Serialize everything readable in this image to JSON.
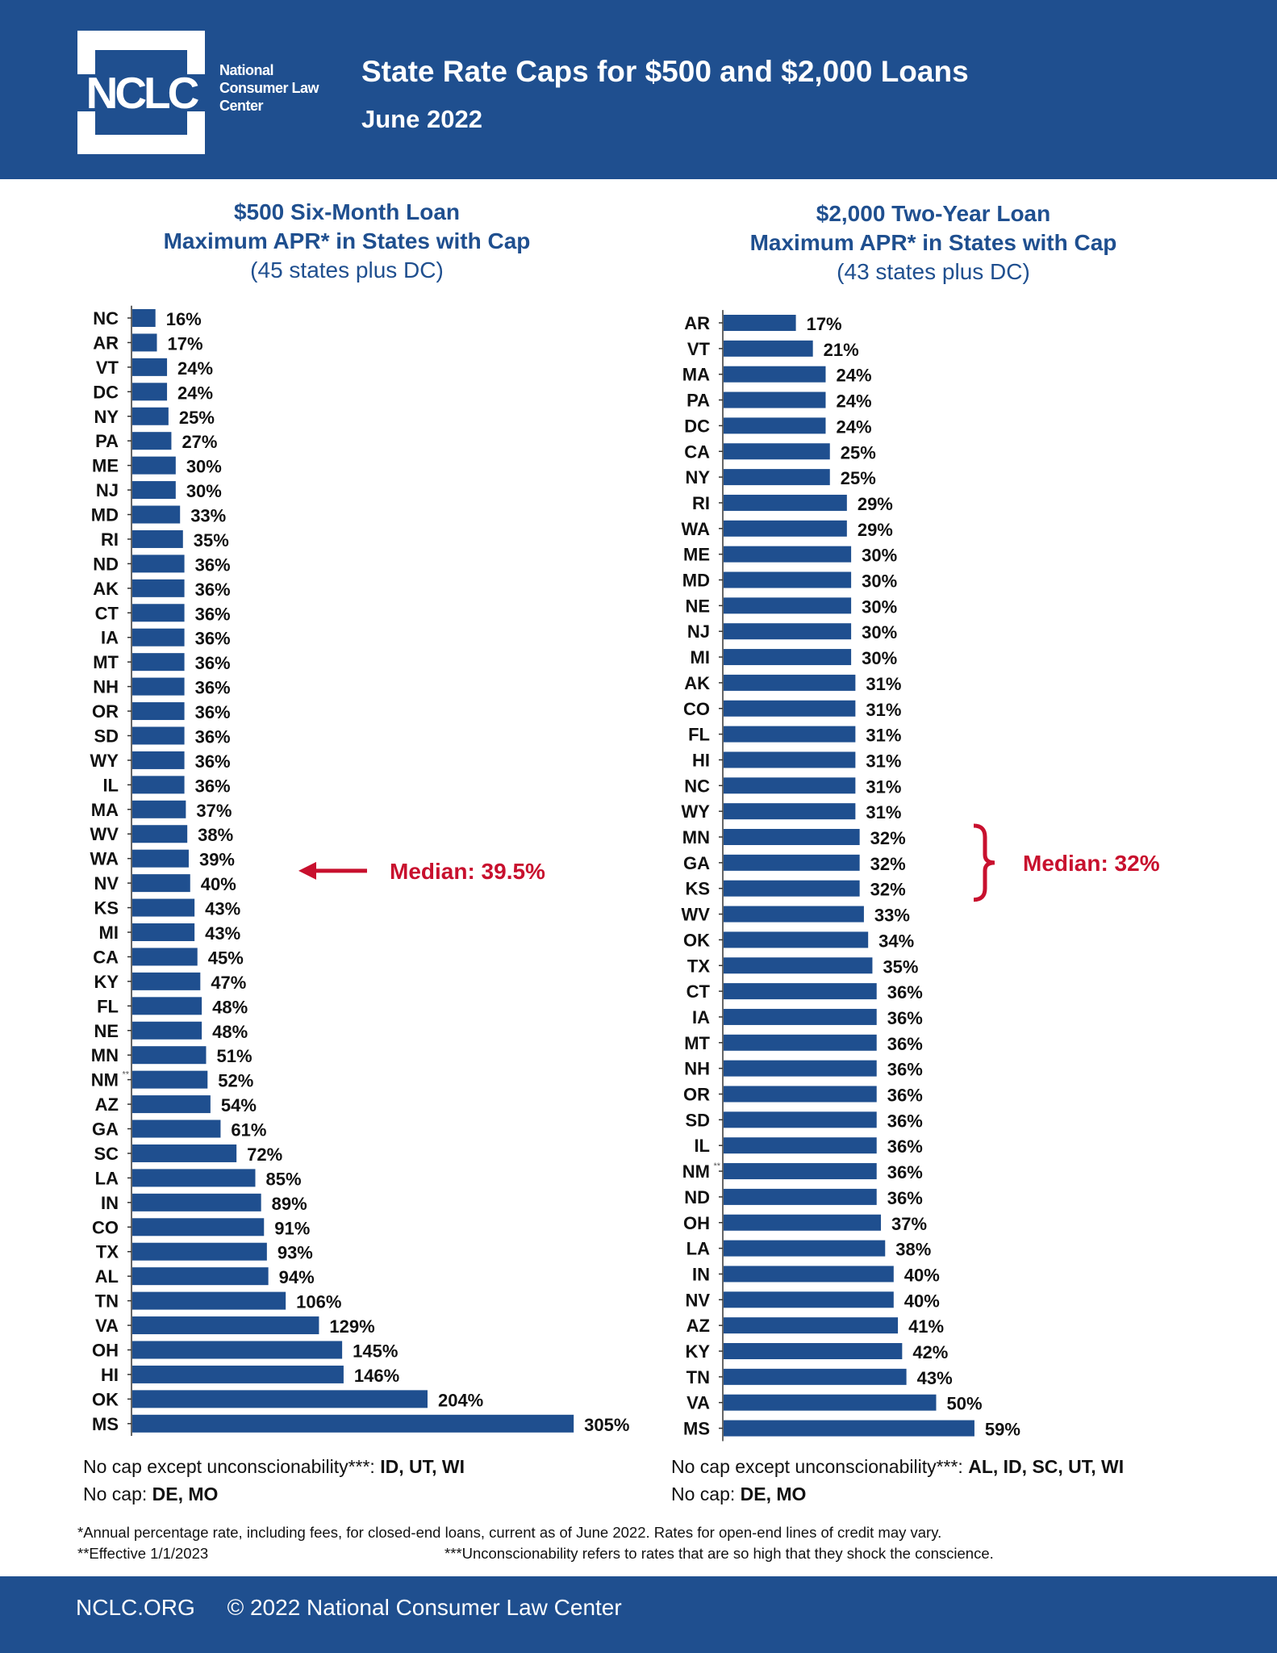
{
  "header": {
    "logo_text": "NCLC",
    "logo_name": [
      "National",
      "Consumer Law",
      "Center"
    ],
    "title": "State Rate Caps for $500 and $2,000 Loans",
    "subtitle": "June 2022"
  },
  "colors": {
    "bar": "#1f4f8f",
    "header": "#1f4f8f",
    "median": "#c8102e",
    "text": "#111111"
  },
  "chart_data": [
    {
      "type": "bar",
      "orientation": "horizontal",
      "title": [
        "$500 Six-Month Loan",
        "Maximum APR* in States with Cap",
        "(45 states plus DC)"
      ],
      "categories": [
        "NC",
        "AR",
        "VT",
        "DC",
        "NY",
        "PA",
        "ME",
        "NJ",
        "MD",
        "RI",
        "ND",
        "AK",
        "CT",
        "IA",
        "MT",
        "NH",
        "OR",
        "SD",
        "WY",
        "IL",
        "MA",
        "WV",
        "WA",
        "NV",
        "KS",
        "MI",
        "CA",
        "KY",
        "FL",
        "NE",
        "MN",
        "NM**",
        "AZ",
        "GA",
        "SC",
        "LA",
        "IN",
        "CO",
        "TX",
        "AL",
        "TN",
        "VA",
        "OH",
        "HI",
        "OK",
        "MS"
      ],
      "values": [
        16,
        17,
        24,
        24,
        25,
        27,
        30,
        30,
        33,
        35,
        36,
        36,
        36,
        36,
        36,
        36,
        36,
        36,
        36,
        36,
        37,
        38,
        39,
        40,
        43,
        43,
        45,
        47,
        48,
        48,
        51,
        52,
        54,
        61,
        72,
        85,
        89,
        91,
        93,
        94,
        106,
        129,
        145,
        146,
        204,
        305
      ],
      "value_suffix": "%",
      "annotation": {
        "text": "Median: 39.5%",
        "marker": "arrow",
        "between": [
          "WA",
          "NV"
        ]
      },
      "notes": {
        "uncon_label": "No cap except unconscionability***:",
        "uncon_states": "ID, UT, WI",
        "nocap_label": "No cap:",
        "nocap_states": "DE, MO"
      }
    },
    {
      "type": "bar",
      "orientation": "horizontal",
      "title": [
        "$2,000 Two-Year Loan",
        "Maximum APR* in States with Cap",
        "(43 states plus DC)"
      ],
      "categories": [
        "AR",
        "VT",
        "MA",
        "PA",
        "DC",
        "CA",
        "NY",
        "RI",
        "WA",
        "ME",
        "MD",
        "NE",
        "NJ",
        "MI",
        "AK",
        "CO",
        "FL",
        "HI",
        "NC",
        "WY",
        "MN",
        "GA",
        "KS",
        "WV",
        "OK",
        "TX",
        "CT",
        "IA",
        "MT",
        "NH",
        "OR",
        "SD",
        "IL",
        "NM**",
        "ND",
        "OH",
        "LA",
        "IN",
        "NV",
        "AZ",
        "KY",
        "TN",
        "VA",
        "MS"
      ],
      "values": [
        17,
        21,
        24,
        24,
        24,
        25,
        25,
        29,
        29,
        30,
        30,
        30,
        30,
        30,
        31,
        31,
        31,
        31,
        31,
        31,
        32,
        32,
        32,
        33,
        34,
        35,
        36,
        36,
        36,
        36,
        36,
        36,
        36,
        36,
        36,
        37,
        38,
        40,
        40,
        41,
        42,
        43,
        50,
        59
      ],
      "value_suffix": "%",
      "annotation": {
        "text": "Median: 32%",
        "marker": "brace",
        "spans": [
          "MN",
          "KS"
        ]
      },
      "notes": {
        "uncon_label": "No cap except unconscionability***:",
        "uncon_states": "AL, ID, SC, UT, WI",
        "nocap_label": "No cap:",
        "nocap_states": "DE, MO"
      }
    }
  ],
  "footnotes": {
    "apr": "*Annual percentage rate, including fees, for closed-end loans, current as of June 2022. Rates for open-end lines of credit may vary.",
    "effective": "**Effective 1/1/2023",
    "uncon": "***Unconscionability refers to rates that are so high that they shock the conscience."
  },
  "footer": {
    "site": "NCLC.ORG",
    "copyright": "© 2022 National Consumer Law Center"
  }
}
